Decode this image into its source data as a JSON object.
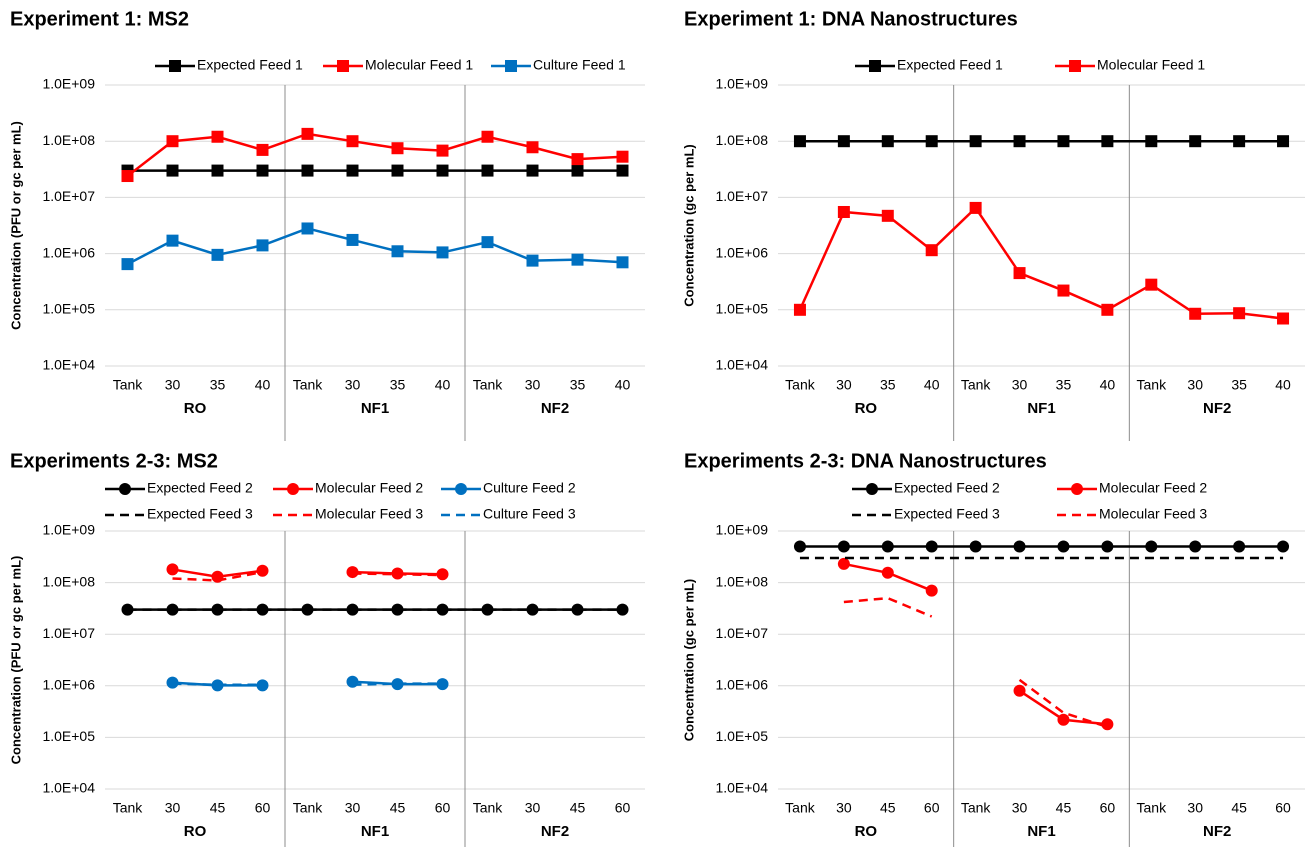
{
  "chart_data": [
    {
      "type": "line",
      "title": "Experiment 1: MS2",
      "y_label": "Concentration (PFU or gc per mL)",
      "log_y": true,
      "grid": true,
      "categories": [
        "Tank",
        "30",
        "35",
        "40",
        "Tank",
        "30",
        "35",
        "40",
        "Tank",
        "30",
        "35",
        "40"
      ],
      "groups": [
        "RO",
        "NF1",
        "NF2"
      ],
      "ylim": [
        10000,
        1000000000
      ],
      "yticks": [
        {
          "value": 10000,
          "label": "1.0E+04"
        },
        {
          "value": 100000,
          "label": "1.0E+05"
        },
        {
          "value": 1000000,
          "label": "1.0E+06"
        },
        {
          "value": 10000000,
          "label": "1.0E+07"
        },
        {
          "value": 100000000,
          "label": "1.0E+08"
        },
        {
          "value": 1000000000,
          "label": "1.0E+09"
        }
      ],
      "series": [
        {
          "name": "Expected Feed 1",
          "color": "#000000",
          "marker": "square",
          "dashed": false,
          "values": [
            30000000,
            30000000,
            30000000,
            30000000,
            30000000,
            30000000,
            30000000,
            30000000,
            30000000,
            30000000,
            30000000,
            30000000
          ]
        },
        {
          "name": "Molecular Feed 1",
          "color": "#ff0000",
          "marker": "square",
          "dashed": false,
          "values": [
            24000000,
            100000000,
            120000000,
            70000000,
            135000000,
            100000000,
            75000000,
            68000000,
            120000000,
            78000000,
            48000000,
            53000000
          ]
        },
        {
          "name": "Culture Feed 1",
          "color": "#0070c0",
          "marker": "square",
          "dashed": false,
          "values": [
            650000,
            1700000,
            950000,
            1400000,
            2800000,
            1750000,
            1100000,
            1050000,
            1600000,
            750000,
            780000,
            700000
          ]
        }
      ]
    },
    {
      "type": "line",
      "title": "Experiment 1: DNA Nanostructures",
      "y_label": "Concentration (gc per mL)",
      "log_y": true,
      "grid": true,
      "categories": [
        "Tank",
        "30",
        "35",
        "40",
        "Tank",
        "30",
        "35",
        "40",
        "Tank",
        "30",
        "35",
        "40"
      ],
      "groups": [
        "RO",
        "NF1",
        "NF2"
      ],
      "ylim": [
        10000,
        1000000000
      ],
      "yticks": [
        {
          "value": 10000,
          "label": "1.0E+04"
        },
        {
          "value": 100000,
          "label": "1.0E+05"
        },
        {
          "value": 1000000,
          "label": "1.0E+06"
        },
        {
          "value": 10000000,
          "label": "1.0E+07"
        },
        {
          "value": 100000000,
          "label": "1.0E+08"
        },
        {
          "value": 1000000000,
          "label": "1.0E+09"
        }
      ],
      "series": [
        {
          "name": "Expected Feed 1",
          "color": "#000000",
          "marker": "square",
          "dashed": false,
          "values": [
            100000000,
            100000000,
            100000000,
            100000000,
            100000000,
            100000000,
            100000000,
            100000000,
            100000000,
            100000000,
            100000000,
            100000000
          ]
        },
        {
          "name": "Molecular Feed 1",
          "color": "#ff0000",
          "marker": "square",
          "dashed": false,
          "values": [
            100000,
            5500000,
            4700000,
            1150000,
            6500000,
            450000,
            220000,
            100000,
            280000,
            85000,
            87000,
            70000
          ]
        }
      ]
    },
    {
      "type": "line",
      "title": "Experiments 2-3: MS2",
      "y_label": "Concentration (PFU or gc per mL)",
      "log_y": true,
      "grid": true,
      "categories": [
        "Tank",
        "30",
        "45",
        "60",
        "Tank",
        "30",
        "45",
        "60",
        "Tank",
        "30",
        "45",
        "60"
      ],
      "groups": [
        "RO",
        "NF1",
        "NF2"
      ],
      "ylim": [
        10000,
        1000000000
      ],
      "yticks": [
        {
          "value": 10000,
          "label": "1.0E+04"
        },
        {
          "value": 100000,
          "label": "1.0E+05"
        },
        {
          "value": 1000000,
          "label": "1.0E+06"
        },
        {
          "value": 10000000,
          "label": "1.0E+07"
        },
        {
          "value": 100000000,
          "label": "1.0E+08"
        },
        {
          "value": 1000000000,
          "label": "1.0E+09"
        }
      ],
      "series": [
        {
          "name": "Expected Feed 2",
          "color": "#000000",
          "marker": "circle",
          "dashed": false,
          "values": [
            30000000,
            30000000,
            30000000,
            30000000,
            30000000,
            30000000,
            30000000,
            30000000,
            30000000,
            30000000,
            30000000,
            30000000
          ]
        },
        {
          "name": "Molecular Feed 2",
          "color": "#ff0000",
          "marker": "circle",
          "dashed": false,
          "values": [
            null,
            180000000,
            130000000,
            170000000,
            null,
            160000000,
            150000000,
            145000000,
            null,
            null,
            null,
            null
          ]
        },
        {
          "name": "Culture Feed 2",
          "color": "#0070c0",
          "marker": "circle",
          "dashed": false,
          "values": [
            null,
            1150000,
            1020000,
            1020000,
            null,
            1200000,
            1080000,
            1080000,
            null,
            null,
            null,
            null
          ]
        },
        {
          "name": "Expected Feed 3",
          "color": "#000000",
          "marker": "none",
          "dashed": true,
          "values": [
            30000000,
            30000000,
            30000000,
            30000000,
            30000000,
            30000000,
            30000000,
            30000000,
            30000000,
            30000000,
            30000000,
            30000000
          ]
        },
        {
          "name": "Molecular Feed 3",
          "color": "#ff0000",
          "marker": "none",
          "dashed": true,
          "values": [
            null,
            120000000,
            110000000,
            160000000,
            null,
            150000000,
            145000000,
            140000000,
            null,
            null,
            null,
            null
          ]
        },
        {
          "name": "Culture Feed 3",
          "color": "#0070c0",
          "marker": "none",
          "dashed": true,
          "values": [
            null,
            1100000,
            1050000,
            1050000,
            null,
            1050000,
            1100000,
            1100000,
            null,
            null,
            null,
            null
          ]
        }
      ]
    },
    {
      "type": "line",
      "title": "Experiments 2-3: DNA Nanostructures",
      "y_label": "Concentration (gc per mL)",
      "log_y": true,
      "grid": true,
      "categories": [
        "Tank",
        "30",
        "45",
        "60",
        "Tank",
        "30",
        "45",
        "60",
        "Tank",
        "30",
        "45",
        "60"
      ],
      "groups": [
        "RO",
        "NF1",
        "NF2"
      ],
      "ylim": [
        10000,
        1000000000
      ],
      "yticks": [
        {
          "value": 10000,
          "label": "1.0E+04"
        },
        {
          "value": 100000,
          "label": "1.0E+05"
        },
        {
          "value": 1000000,
          "label": "1.0E+06"
        },
        {
          "value": 10000000,
          "label": "1.0E+07"
        },
        {
          "value": 100000000,
          "label": "1.0E+08"
        },
        {
          "value": 1000000000,
          "label": "1.0E+09"
        }
      ],
      "series": [
        {
          "name": "Expected Feed 2",
          "color": "#000000",
          "marker": "circle",
          "dashed": false,
          "values": [
            500000000,
            500000000,
            500000000,
            500000000,
            500000000,
            500000000,
            500000000,
            500000000,
            500000000,
            500000000,
            500000000,
            500000000
          ]
        },
        {
          "name": "Molecular Feed 2",
          "color": "#ff0000",
          "marker": "circle",
          "dashed": false,
          "values": [
            null,
            230000000,
            155000000,
            70000000,
            null,
            800000,
            220000,
            180000,
            null,
            null,
            null,
            null
          ]
        },
        {
          "name": "Expected Feed 3",
          "color": "#000000",
          "marker": "none",
          "dashed": true,
          "values": [
            300000000,
            300000000,
            300000000,
            300000000,
            300000000,
            300000000,
            300000000,
            300000000,
            300000000,
            300000000,
            300000000,
            300000000
          ]
        },
        {
          "name": "Molecular Feed 3",
          "color": "#ff0000",
          "marker": "none",
          "dashed": true,
          "values": [
            null,
            42000000,
            50000000,
            22000000,
            null,
            1300000,
            300000,
            160000,
            null,
            null,
            null,
            null
          ]
        }
      ]
    }
  ]
}
